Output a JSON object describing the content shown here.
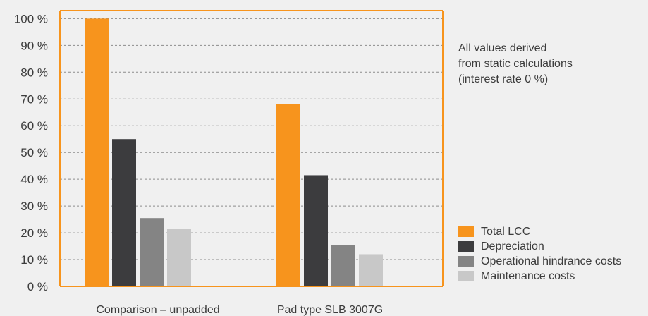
{
  "chart_data": {
    "type": "bar",
    "categories": [
      "Comparison – unpadded",
      "Pad type SLB 3007G"
    ],
    "series": [
      {
        "name": "Total LCC",
        "color": "#f7941d",
        "values": [
          100,
          68
        ]
      },
      {
        "name": "Depreciation",
        "color": "#3c3c3e",
        "values": [
          55,
          41.5
        ]
      },
      {
        "name": "Operational hindrance costs",
        "color": "#848484",
        "values": [
          25.5,
          15.5
        ]
      },
      {
        "name": "Maintenance costs",
        "color": "#c8c8c8",
        "values": [
          21.5,
          12
        ]
      }
    ],
    "yticks": [
      "0 %",
      "10 %",
      "20 %",
      "30 %",
      "40 %",
      "50 %",
      "60 %",
      "70 %",
      "80 %",
      "90 %",
      "100 %"
    ],
    "ylim": [
      0,
      103
    ],
    "grid": true,
    "legend_position": "bottom-right",
    "axis_color": "#f7941d",
    "grid_color": "#8c8c8c"
  },
  "note": {
    "lines": [
      "All values derived",
      "from static calculations",
      "(interest rate 0 %)"
    ]
  }
}
